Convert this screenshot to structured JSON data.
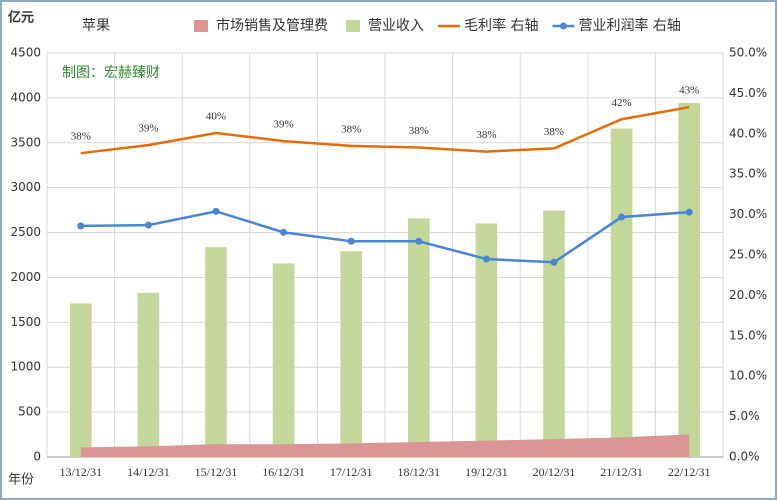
{
  "chart_data": {
    "type": "combo",
    "title": "苹果",
    "y_label": "亿元",
    "x_label": "年份",
    "annotation": "制图：宏赫臻财",
    "categories": [
      "13/12/31",
      "14/12/31",
      "15/12/31",
      "16/12/31",
      "17/12/31",
      "18/12/31",
      "19/12/31",
      "20/12/31",
      "21/12/31",
      "22/12/31"
    ],
    "series": [
      {
        "name": "市场销售及管理费",
        "type": "area",
        "color": "#d99694",
        "values": [
          107,
          119,
          143,
          142,
          152,
          167,
          182,
          199,
          219,
          251
        ]
      },
      {
        "name": "营业收入",
        "type": "bar",
        "color": "#c4d79b",
        "values": [
          1710,
          1828,
          2337,
          2156,
          2292,
          2658,
          2602,
          2745,
          3658,
          3943
        ]
      },
      {
        "name": "毛利率 右轴",
        "type": "line",
        "axis": "y2",
        "color": "#e46c0a",
        "values": [
          37.6,
          38.6,
          40.1,
          39.1,
          38.5,
          38.3,
          37.8,
          38.2,
          41.8,
          43.3
        ],
        "value_labels": [
          "38%",
          "39%",
          "40%",
          "39%",
          "38%",
          "38%",
          "38%",
          "38%",
          "42%",
          "43%"
        ]
      },
      {
        "name": "营业利润率 右轴",
        "type": "line",
        "axis": "y2",
        "marker": true,
        "color": "#4a86d0",
        "values": [
          28.6,
          28.7,
          30.4,
          27.8,
          26.7,
          26.7,
          24.5,
          24.1,
          29.7,
          30.3
        ]
      }
    ],
    "ylim": [
      0,
      4500
    ],
    "yticks": [
      0,
      500,
      1000,
      1500,
      2000,
      2500,
      3000,
      3500,
      4000,
      4500
    ],
    "y2lim": [
      0,
      50
    ],
    "y2ticks": [
      {
        "value": 0,
        "label": "0.0%"
      },
      {
        "value": 5,
        "label": "5.0%"
      },
      {
        "value": 10,
        "label": "10.0%"
      },
      {
        "value": 15,
        "label": "15.0%"
      },
      {
        "value": 20,
        "label": "20.0%"
      },
      {
        "value": 25,
        "label": "25.0%"
      },
      {
        "value": 30,
        "label": "30.0%"
      },
      {
        "value": 35,
        "label": "35.0%"
      },
      {
        "value": 40,
        "label": "40.0%"
      },
      {
        "value": 45,
        "label": "45.0%"
      },
      {
        "value": 50,
        "label": "50.0%"
      }
    ],
    "grid": true
  }
}
